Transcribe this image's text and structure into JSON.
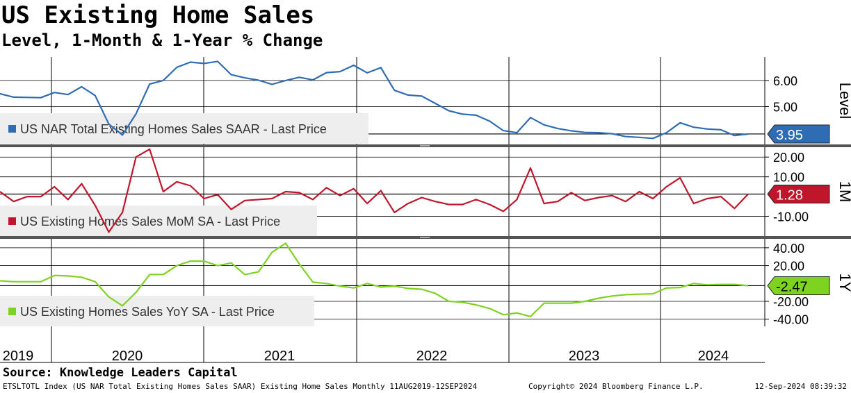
{
  "title": "US Existing Home Sales",
  "subtitle": "Level, 1-Month & 1-Year % Change",
  "source": "Source: Knowledge Leaders Capital",
  "footer": {
    "left": "ETSLTOTL Index (US NAR Total Existing Homes Sales SAAR) Existing Home Sales  Monthly 11AUG2019-12SEP2024",
    "middle": "Copyright© 2024 Bloomberg Finance L.P.",
    "right": "12-Sep-2024 08:39:32"
  },
  "colors": {
    "level": "#2E6DB4",
    "mom": "#C0162C",
    "yoy": "#7ED321",
    "panel_divider": "#555555"
  },
  "chart_data": [
    {
      "type": "line",
      "panel": "Level",
      "legend": "US NAR Total Existing Homes Sales SAAR - Last Price",
      "last_value": "3.95",
      "ylim": [
        3.55,
        6.9
      ],
      "ticks": [
        6.0,
        5.0
      ],
      "tick_labels": [
        "6.00",
        "5.00"
      ],
      "reference_line": 3.95,
      "series": [
        5.49,
        5.36,
        5.35,
        5.34,
        5.54,
        5.46,
        5.76,
        5.42,
        4.33,
        3.91,
        4.72,
        5.86,
        6.0,
        6.5,
        6.7,
        6.65,
        6.73,
        6.22,
        6.1,
        6.01,
        5.85,
        6.0,
        6.12,
        6.02,
        6.3,
        6.34,
        6.58,
        6.29,
        6.49,
        5.62,
        5.44,
        5.4,
        5.12,
        4.84,
        4.71,
        4.67,
        4.44,
        4.08,
        4.0,
        4.58,
        4.3,
        4.16,
        4.07,
        4.01,
        4.0,
        3.96,
        3.85,
        3.82,
        3.78,
        4.0,
        4.38,
        4.21,
        4.14,
        4.11,
        3.89,
        3.95
      ]
    },
    {
      "type": "line",
      "panel": "1M",
      "legend": "US Existing Homes Sales MoM SA - Last Price",
      "last_value": "1.28",
      "ylim": [
        -20,
        25
      ],
      "ticks": [
        20.0,
        10.0,
        -10.0
      ],
      "tick_labels": [
        "20.00",
        "10.00",
        "-10.00"
      ],
      "reference_line": 1.28,
      "series": [
        2.5,
        -2.5,
        0.0,
        0.0,
        5.0,
        -1.5,
        6.5,
        -4.5,
        -18.0,
        -8.0,
        20.0,
        24.0,
        2.5,
        7.5,
        5.5,
        -1.0,
        1.0,
        -6.5,
        -2.0,
        -1.5,
        -1.0,
        2.5,
        2.0,
        -1.5,
        4.5,
        0.5,
        4.0,
        -3.5,
        3.0,
        -8.0,
        -3.5,
        -0.5,
        -2.5,
        -4.0,
        -4.0,
        -1.5,
        -4.0,
        -7.5,
        -1.5,
        14.5,
        -3.5,
        -2.5,
        2.0,
        -2.0,
        -0.5,
        0.5,
        -2.5,
        2.5,
        -1.0,
        5.0,
        9.5,
        -3.5,
        -1.0,
        0.0,
        -6.0,
        1.28
      ]
    },
    {
      "type": "line",
      "panel": "1Y",
      "legend": "US Existing Homes Sales YoY SA - Last Price",
      "last_value": "-2.47",
      "ylim": [
        -48,
        50
      ],
      "ticks": [
        40.0,
        20.0,
        -20.0,
        -40.0
      ],
      "tick_labels": [
        "40.00",
        "20.00",
        "-20.00",
        "-40.00"
      ],
      "reference_line": -2.47,
      "series": [
        3.0,
        2.0,
        2.0,
        2.0,
        9.0,
        8.5,
        7.0,
        2.0,
        -15.0,
        -25.0,
        -10.0,
        10.0,
        10.0,
        20.0,
        25.0,
        25.0,
        20.0,
        23.0,
        10.0,
        13.0,
        35.0,
        45.0,
        22.0,
        1.5,
        0.0,
        -3.0,
        -5.0,
        0.0,
        -4.0,
        -3.0,
        -5.5,
        -6.5,
        -11.0,
        -20.0,
        -21.0,
        -24.0,
        -28.0,
        -35.0,
        -33.0,
        -37.0,
        -22.0,
        -22.0,
        -22.0,
        -20.0,
        -16.5,
        -14.0,
        -12.5,
        -12.0,
        -11.5,
        -5.0,
        -4.5,
        0.0,
        -1.5,
        -1.0,
        -1.0,
        -2.47
      ]
    }
  ],
  "x_axis": {
    "labels": [
      "2019",
      "2020",
      "2021",
      "2022",
      "2023",
      "2024"
    ]
  }
}
